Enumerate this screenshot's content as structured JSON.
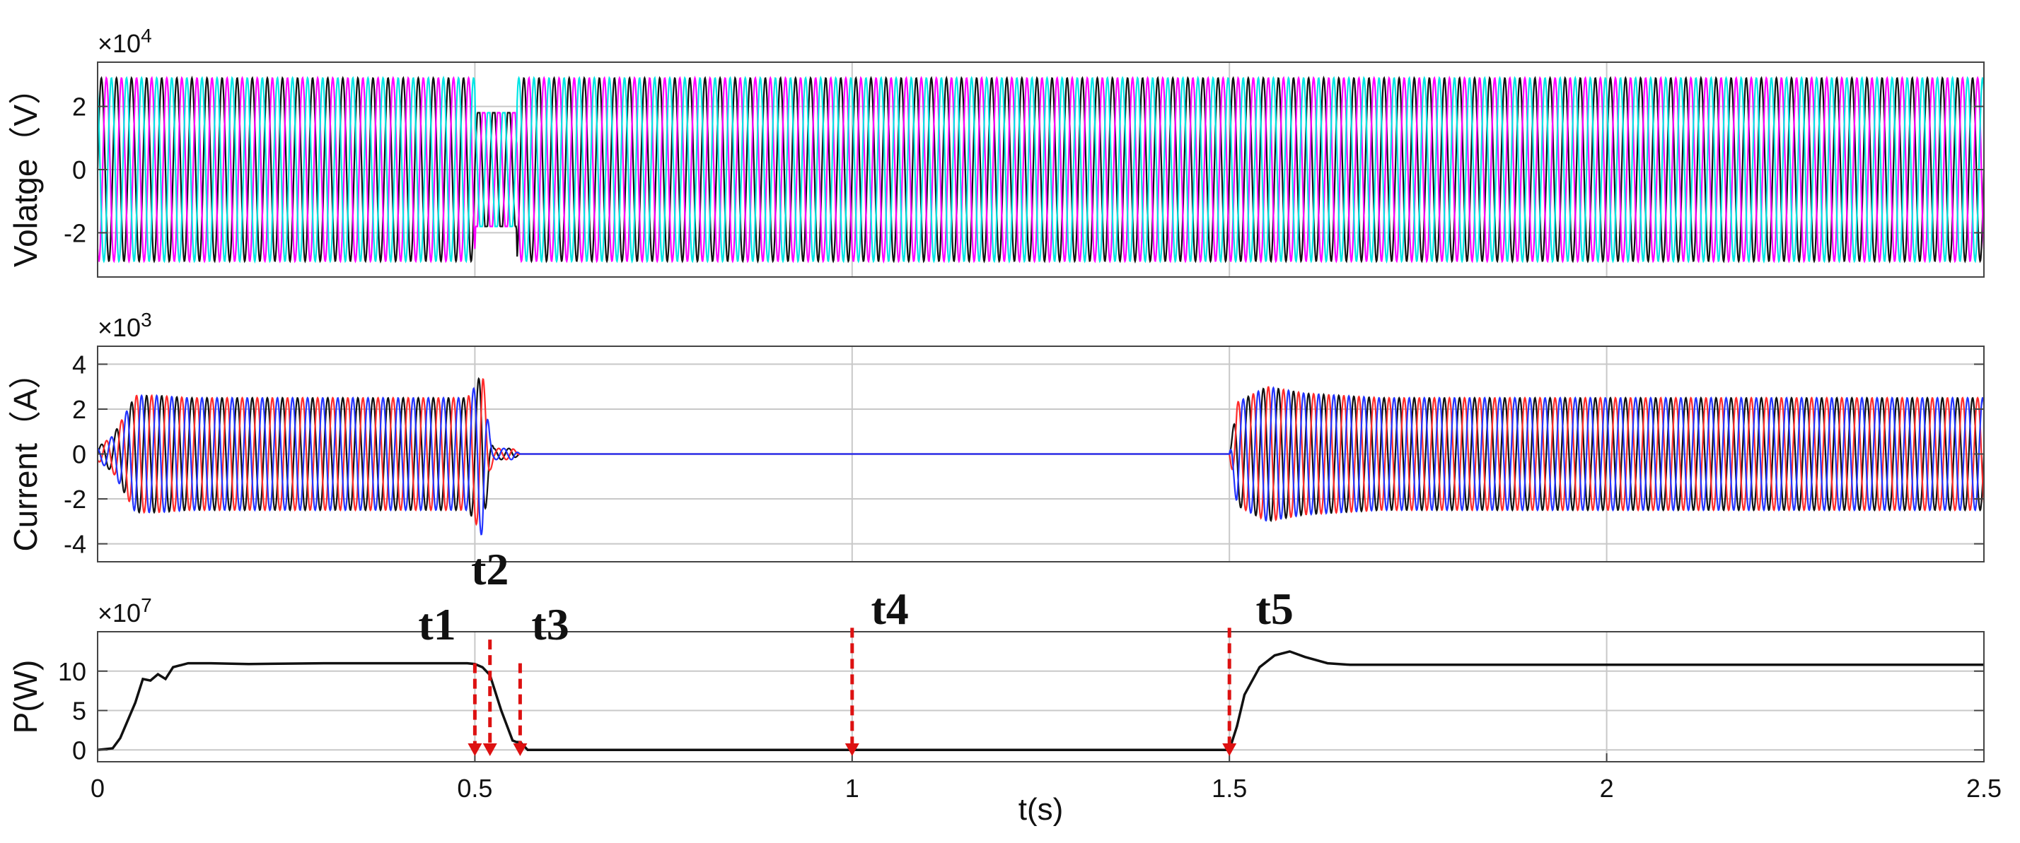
{
  "colors": {
    "voltage_a": "#111111",
    "voltage_b": "#ff00ff",
    "voltage_c": "#00e5e5",
    "current_a": "#111111",
    "current_b": "#ff2a2a",
    "current_c": "#2233ff",
    "power": "#111111",
    "marker": "#dd1111",
    "grid": "#c8c8c8"
  },
  "chart_data": [
    {
      "type": "line",
      "ylabel": "Volatge（V）",
      "multiplier_base": "×10",
      "multiplier_exp": "4",
      "xlim": [
        0,
        2.5
      ],
      "ylim": [
        -3.4,
        3.4
      ],
      "yticks": [
        -2,
        0,
        2
      ],
      "grid": true,
      "frequency_hz": 50,
      "series": [
        {
          "phase_deg": 0
        },
        {
          "phase_deg": -120
        },
        {
          "phase_deg": 120
        }
      ],
      "envelope": {
        "t": [
          0,
          0.5,
          0.501,
          0.555,
          0.556,
          2.5
        ],
        "amplitude": [
          2.9,
          2.9,
          1.8,
          1.8,
          2.9,
          2.9
        ]
      }
    },
    {
      "type": "line",
      "ylabel": "Current（A）",
      "multiplier_base": "×10",
      "multiplier_exp": "3",
      "xlim": [
        0,
        2.5
      ],
      "ylim": [
        -4.8,
        4.8
      ],
      "yticks": [
        -4,
        -2,
        0,
        2,
        4
      ],
      "grid": true,
      "frequency_hz": 50,
      "series": [
        {
          "phase_deg": 0
        },
        {
          "phase_deg": -120
        },
        {
          "phase_deg": 120
        }
      ],
      "envelope": {
        "t": [
          0,
          0.02,
          0.05,
          0.08,
          0.12,
          0.49,
          0.5,
          0.51,
          0.52,
          0.525,
          0.55,
          0.56,
          0.57,
          1.5,
          1.51,
          1.55,
          1.6,
          1.7,
          2.5
        ],
        "amplitude": [
          0.3,
          0.8,
          2.6,
          2.6,
          2.5,
          2.5,
          3.0,
          3.7,
          0.8,
          0.25,
          0.25,
          0,
          0,
          0,
          2.3,
          3.0,
          2.7,
          2.5,
          2.5
        ]
      }
    },
    {
      "type": "line",
      "ylabel": "P(W)",
      "multiplier_base": "×10",
      "multiplier_exp": "7",
      "xlabel": "t(s)",
      "xlim": [
        0,
        2.5
      ],
      "ylim": [
        -1.5,
        15
      ],
      "yticks": [
        0,
        5,
        10
      ],
      "xticks": [
        0,
        0.5,
        1,
        1.5,
        2,
        2.5
      ],
      "xtick_labels": [
        "0",
        "0.5",
        "1",
        "1.5",
        "2",
        "2.5"
      ],
      "grid": true,
      "series": [
        {
          "x": [
            0,
            0.02,
            0.03,
            0.05,
            0.06,
            0.07,
            0.08,
            0.09,
            0.1,
            0.12,
            0.15,
            0.2,
            0.3,
            0.4,
            0.49,
            0.5,
            0.51,
            0.52,
            0.535,
            0.55,
            0.555,
            0.56,
            0.57,
            0.6,
            1.0,
            1.5,
            1.51,
            1.52,
            1.54,
            1.56,
            1.58,
            1.6,
            1.63,
            1.66,
            1.7,
            2.0,
            2.5
          ],
          "y": [
            0,
            0.2,
            1.5,
            6.0,
            9.0,
            8.8,
            9.6,
            9.0,
            10.5,
            11.0,
            11.0,
            10.9,
            11.0,
            11.0,
            11.0,
            10.9,
            10.5,
            9.5,
            5.0,
            1.2,
            1.0,
            1.0,
            0,
            0,
            0,
            0,
            3.0,
            7.0,
            10.5,
            12.0,
            12.5,
            11.8,
            11.0,
            10.8,
            10.8,
            10.8,
            10.8
          ]
        }
      ],
      "annotations": [
        {
          "label": "t1",
          "x": 0.5,
          "label_x": 0.45,
          "label_y": 14.0
        },
        {
          "label": "t2",
          "x": 0.52,
          "label_x": 0.52,
          "label_y": 21.0
        },
        {
          "label": "t3",
          "x": 0.56,
          "label_x": 0.6,
          "label_y": 14.0
        },
        {
          "label": "t4",
          "x": 1.0,
          "label_x": 1.05,
          "label_y": 16.0
        },
        {
          "label": "t5",
          "x": 1.5,
          "label_x": 1.56,
          "label_y": 16.0
        }
      ]
    }
  ]
}
